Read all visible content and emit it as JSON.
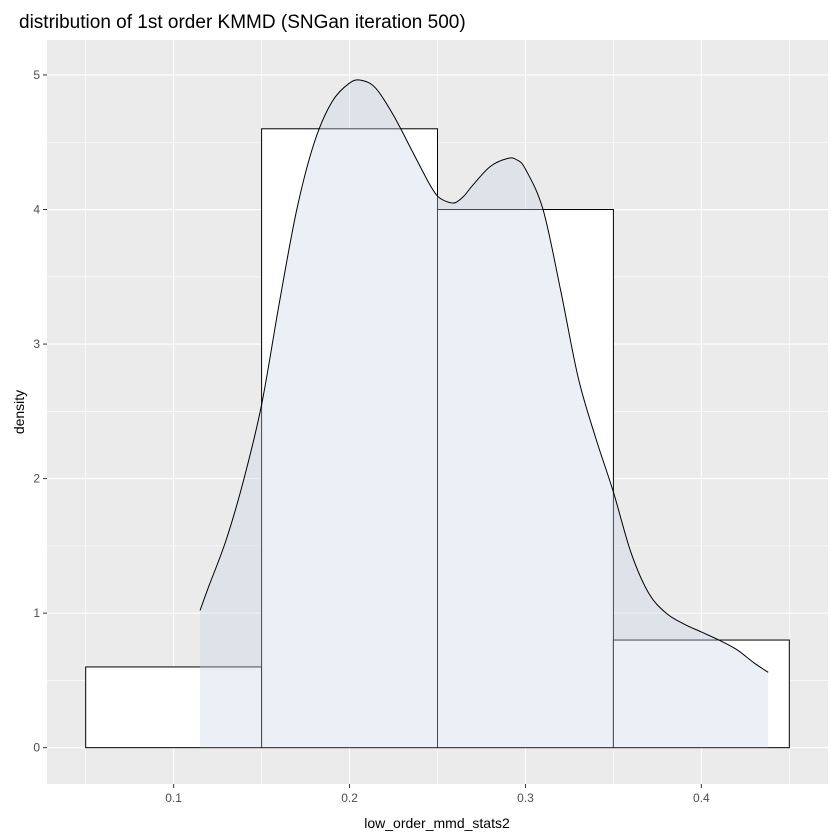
{
  "chart_data": {
    "type": "bar",
    "title": "distribution of 1st order KMMD (SNGan iteration 500)",
    "xlabel": "low_order_mmd_stats2",
    "ylabel": "density",
    "xlim": [
      0.028,
      0.472
    ],
    "ylim": [
      -0.27,
      5.26
    ],
    "x_ticks": [
      0.1,
      0.2,
      0.3,
      0.4
    ],
    "x_tick_labels": [
      "0.1",
      "0.2",
      "0.3",
      "0.4"
    ],
    "y_ticks": [
      0,
      1,
      2,
      3,
      4,
      5
    ],
    "y_tick_labels": [
      "0",
      "1",
      "2",
      "3",
      "4",
      "5"
    ],
    "grid": true,
    "histogram": [
      {
        "x0": 0.05,
        "x1": 0.15,
        "density": 0.6
      },
      {
        "x0": 0.15,
        "x1": 0.25,
        "density": 4.6
      },
      {
        "x0": 0.25,
        "x1": 0.35,
        "density": 4.0
      },
      {
        "x0": 0.35,
        "x1": 0.45,
        "density": 0.8
      }
    ],
    "density_curve": {
      "x": [
        0.115,
        0.12,
        0.13,
        0.14,
        0.15,
        0.16,
        0.17,
        0.18,
        0.19,
        0.2,
        0.207,
        0.215,
        0.225,
        0.235,
        0.245,
        0.25,
        0.255,
        0.26,
        0.265,
        0.27,
        0.28,
        0.29,
        0.295,
        0.3,
        0.31,
        0.32,
        0.33,
        0.34,
        0.35,
        0.36,
        0.37,
        0.38,
        0.39,
        0.4,
        0.41,
        0.42,
        0.43,
        0.438
      ],
      "y": [
        1.02,
        1.2,
        1.55,
        2.0,
        2.55,
        3.3,
        4.0,
        4.5,
        4.8,
        4.94,
        4.96,
        4.9,
        4.7,
        4.45,
        4.2,
        4.1,
        4.06,
        4.05,
        4.1,
        4.18,
        4.32,
        4.38,
        4.37,
        4.3,
        4.0,
        3.4,
        2.75,
        2.3,
        1.9,
        1.45,
        1.15,
        1.0,
        0.92,
        0.86,
        0.8,
        0.73,
        0.63,
        0.56
      ]
    },
    "colors": {
      "panel_background": "#ebebeb",
      "grid": "#ffffff",
      "bar_fill": "#ffffff",
      "bar_outline": "#000000",
      "density_fill": "#c6d1e4",
      "density_line": "#000000"
    }
  }
}
